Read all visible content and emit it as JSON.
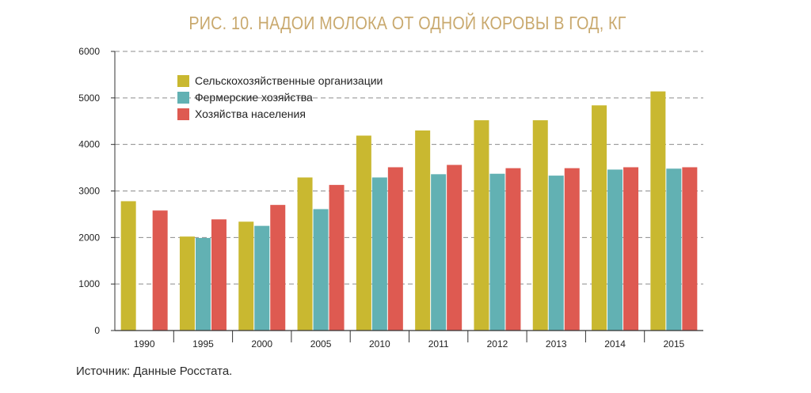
{
  "title": "РИС. 10. НАДОИ МОЛОКА ОТ ОДНОЙ КОРОВЫ В ГОД, КГ",
  "source": "Источник: Данные Росстата.",
  "chart_data": {
    "type": "bar",
    "title": "РИС. 10. НАДОИ МОЛОКА ОТ ОДНОЙ КОРОВЫ В ГОД, КГ",
    "xlabel": "",
    "ylabel": "",
    "ylim": [
      0,
      6000
    ],
    "yticks": [
      0,
      1000,
      2000,
      3000,
      4000,
      5000,
      6000
    ],
    "grid": "horizontal-dashed",
    "legend_position": "top-left",
    "categories": [
      "1990",
      "1995",
      "2000",
      "2005",
      "2010",
      "2011",
      "2012",
      "2013",
      "2014",
      "2015"
    ],
    "series": [
      {
        "name": "Сельскохозяйственные организации",
        "color": "#c9b830",
        "values": [
          2780,
          2020,
          2340,
          3290,
          4190,
          4300,
          4520,
          4520,
          4840,
          5140
        ]
      },
      {
        "name": "Фермерские хозяйства",
        "color": "#62b1b3",
        "values": [
          null,
          1990,
          2250,
          2610,
          3290,
          3360,
          3370,
          3330,
          3460,
          3480
        ]
      },
      {
        "name": "Хозяйства населения",
        "color": "#de5a51",
        "values": [
          2580,
          2390,
          2700,
          3130,
          3510,
          3560,
          3490,
          3490,
          3510,
          3510
        ]
      }
    ]
  }
}
